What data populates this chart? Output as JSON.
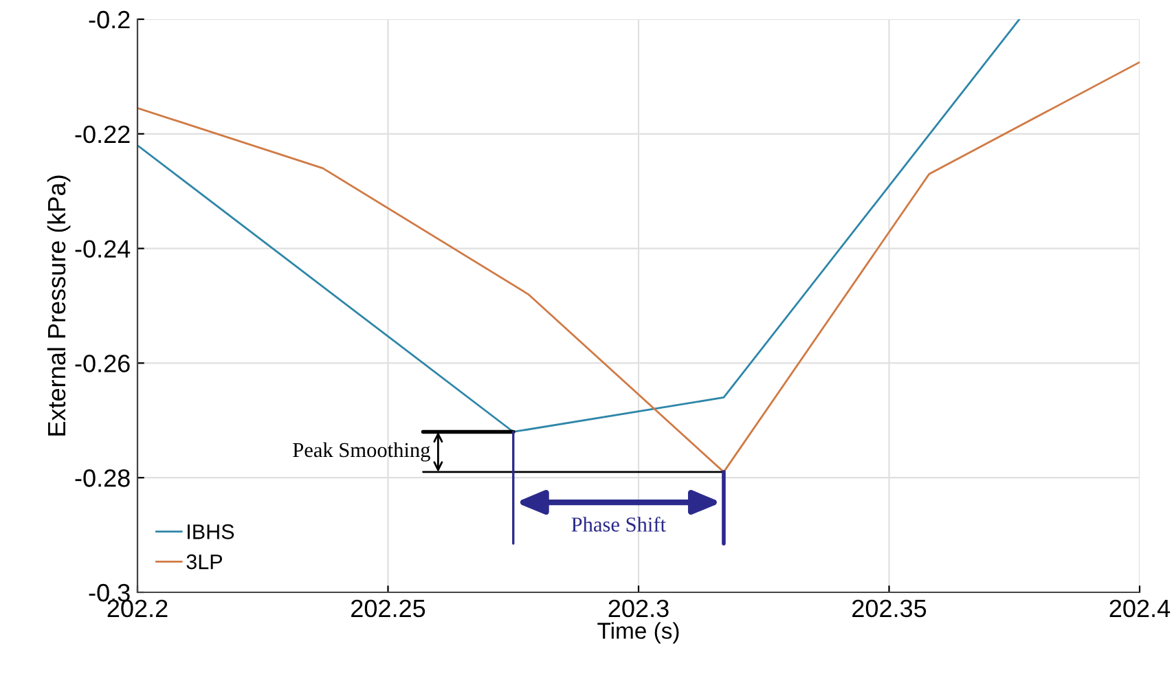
{
  "chart_data": {
    "type": "line",
    "xlabel": "Time (s)",
    "ylabel": "External Pressure (kPa)",
    "xlim": [
      202.2,
      202.4
    ],
    "ylim": [
      -0.3,
      -0.2
    ],
    "xticks": [
      202.2,
      202.25,
      202.3,
      202.35,
      202.4
    ],
    "yticks": [
      -0.3,
      -0.28,
      -0.26,
      -0.24,
      -0.22,
      -0.2
    ],
    "grid": true,
    "legend": "bottom left",
    "series": [
      {
        "name": "IBHS",
        "color": "#2e86a8",
        "x": [
          202.2,
          202.275,
          202.317,
          202.376
        ],
        "values": [
          -0.222,
          -0.272,
          -0.266,
          -0.2
        ]
      },
      {
        "name": "3LP",
        "color": "#d07a45",
        "x": [
          202.2,
          202.237,
          202.278,
          202.317,
          202.358,
          202.4
        ],
        "values": [
          -0.2155,
          -0.226,
          -0.248,
          -0.279,
          -0.227,
          -0.2075
        ]
      }
    ],
    "annotations": [
      {
        "text": "Peak Smoothing",
        "x": 202.275,
        "y": -0.272
      },
      "Phase Shift"
    ]
  }
}
